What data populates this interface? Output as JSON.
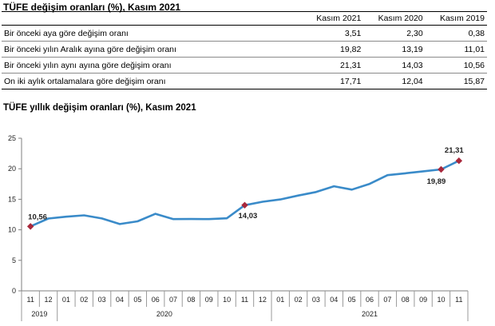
{
  "table": {
    "title": "TÜFE değişim oranları (%), Kasım 2021",
    "columns": [
      "",
      "Kasım 2021",
      "Kasım 2020",
      "Kasım 2019"
    ],
    "rows": [
      {
        "label": "Bir önceki aya göre değişim oranı",
        "values": [
          "3,51",
          "2,30",
          "0,38"
        ]
      },
      {
        "label": "Bir önceki yılın Aralık ayına göre değişim oranı",
        "values": [
          "19,82",
          "13,19",
          "11,01"
        ]
      },
      {
        "label": "Bir önceki yılın aynı ayına göre değişim oranı",
        "values": [
          "21,31",
          "14,03",
          "10,56"
        ]
      },
      {
        "label": "On iki aylık ortalamalara göre değişim oranı",
        "values": [
          "17,71",
          "12,04",
          "15,87"
        ]
      }
    ]
  },
  "chart_data": {
    "type": "line",
    "title": "TÜFE yıllık değişim oranları (%), Kasım 2021",
    "x": [
      "11",
      "12",
      "01",
      "02",
      "03",
      "04",
      "05",
      "06",
      "07",
      "08",
      "09",
      "10",
      "11",
      "12",
      "01",
      "02",
      "03",
      "04",
      "05",
      "06",
      "07",
      "08",
      "09",
      "10",
      "11"
    ],
    "x_groups": [
      {
        "label": "2019",
        "start": 0,
        "end": 1
      },
      {
        "label": "2020",
        "start": 2,
        "end": 13
      },
      {
        "label": "2021",
        "start": 14,
        "end": 24
      }
    ],
    "series": [
      {
        "values": [
          10.56,
          11.84,
          12.15,
          12.37,
          11.86,
          10.94,
          11.39,
          12.62,
          11.76,
          11.77,
          11.75,
          11.89,
          14.03,
          14.6,
          14.97,
          15.61,
          16.19,
          17.14,
          16.59,
          17.53,
          18.95,
          19.25,
          19.58,
          19.89,
          21.31
        ],
        "color": "#3a8bc9"
      }
    ],
    "highlights": [
      {
        "index": 0,
        "label": "10,56"
      },
      {
        "index": 12,
        "label": "14,03"
      },
      {
        "index": 23,
        "label": "19,89"
      },
      {
        "index": 24,
        "label": "21,31"
      }
    ],
    "yticks": [
      "0",
      "5",
      "10",
      "15",
      "20",
      "25"
    ],
    "ylim": [
      0,
      25
    ],
    "grid": false,
    "marker_color": "#a8283c"
  }
}
